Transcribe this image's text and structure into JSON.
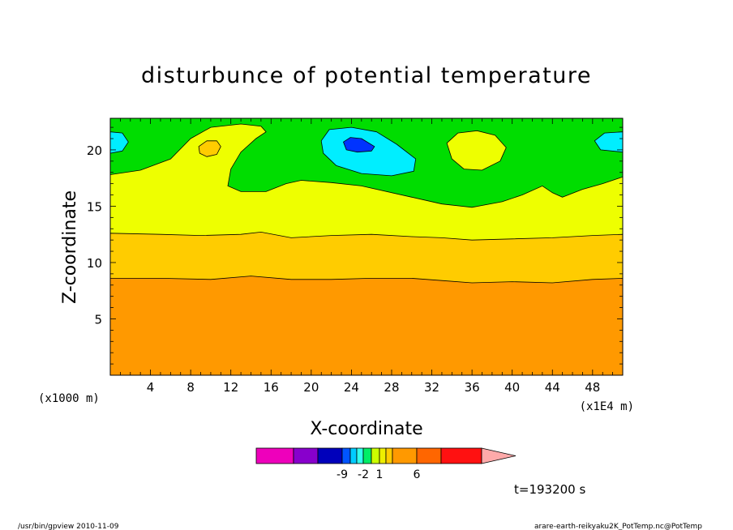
{
  "chart_data": {
    "type": "contour",
    "title": "disturbunce of potential temperature",
    "xlabel": "X-coordinate",
    "ylabel": "Z-coordinate",
    "x_unit_left": "(x1000 m)",
    "x_unit_right": "(x1E4 m)",
    "xlim": [
      0,
      51
    ],
    "ylim": [
      0,
      22.8
    ],
    "xticks": [
      4,
      8,
      12,
      16,
      20,
      24,
      28,
      32,
      36,
      40,
      44,
      48
    ],
    "yticks": [
      5,
      10,
      15,
      20
    ],
    "bands": [
      {
        "name": "orange-bottom",
        "color": "#ff9900",
        "upper": [
          [
            0,
            8.6
          ],
          [
            5,
            8.6
          ],
          [
            10,
            8.5
          ],
          [
            14,
            8.8
          ],
          [
            18,
            8.5
          ],
          [
            22,
            8.5
          ],
          [
            26,
            8.6
          ],
          [
            30,
            8.6
          ],
          [
            33,
            8.4
          ],
          [
            36,
            8.2
          ],
          [
            40,
            8.3
          ],
          [
            44,
            8.2
          ],
          [
            48,
            8.5
          ],
          [
            51,
            8.6
          ]
        ]
      },
      {
        "name": "gold",
        "color": "#ffcc00",
        "upper": [
          [
            0,
            12.6
          ],
          [
            5,
            12.5
          ],
          [
            9,
            12.4
          ],
          [
            13,
            12.5
          ],
          [
            15,
            12.7
          ],
          [
            18,
            12.2
          ],
          [
            22,
            12.4
          ],
          [
            26,
            12.5
          ],
          [
            30,
            12.3
          ],
          [
            33,
            12.2
          ],
          [
            36,
            12.0
          ],
          [
            40,
            12.1
          ],
          [
            44,
            12.2
          ],
          [
            48,
            12.4
          ],
          [
            51,
            12.5
          ]
        ]
      },
      {
        "name": "yellow",
        "color": "#eeff00",
        "upper": [
          [
            0,
            17.8
          ],
          [
            3,
            18.2
          ],
          [
            6,
            19.2
          ],
          [
            8,
            21.0
          ],
          [
            10,
            22.0
          ],
          [
            13,
            22.3
          ],
          [
            15,
            22.1
          ],
          [
            15.5,
            21.6
          ],
          [
            14.5,
            21.0
          ],
          [
            13,
            19.8
          ],
          [
            12,
            18.3
          ],
          [
            11.7,
            16.8
          ],
          [
            13,
            16.3
          ],
          [
            15.5,
            16.3
          ],
          [
            17.5,
            17.0
          ],
          [
            19,
            17.3
          ],
          [
            22,
            17.1
          ],
          [
            25,
            16.8
          ],
          [
            30,
            15.8
          ],
          [
            33,
            15.2
          ],
          [
            36,
            14.9
          ],
          [
            39,
            15.4
          ],
          [
            41,
            16.0
          ],
          [
            43,
            16.8
          ],
          [
            44,
            16.2
          ],
          [
            45,
            15.8
          ],
          [
            47,
            16.5
          ],
          [
            49,
            17.0
          ],
          [
            51,
            17.6
          ]
        ]
      }
    ],
    "regions": [
      {
        "name": "cyan-left",
        "color": "#00eeff",
        "points": [
          [
            0,
            21.6
          ],
          [
            1.2,
            21.5
          ],
          [
            1.8,
            20.7
          ],
          [
            1.2,
            19.9
          ],
          [
            0,
            19.7
          ]
        ]
      },
      {
        "name": "cyan-right",
        "color": "#00eeff",
        "points": [
          [
            51,
            21.6
          ],
          [
            49.2,
            21.5
          ],
          [
            48.2,
            20.8
          ],
          [
            48.8,
            20.0
          ],
          [
            51,
            19.8
          ]
        ]
      },
      {
        "name": "cyan-center",
        "color": "#00eeff",
        "points": [
          [
            21,
            20.8
          ],
          [
            21.8,
            21.8
          ],
          [
            24,
            22.0
          ],
          [
            26.5,
            21.6
          ],
          [
            28.5,
            20.5
          ],
          [
            30.4,
            19.2
          ],
          [
            30.2,
            18.1
          ],
          [
            28,
            17.7
          ],
          [
            25,
            17.9
          ],
          [
            22.5,
            18.6
          ],
          [
            21.2,
            19.7
          ]
        ]
      },
      {
        "name": "blue-center",
        "color": "#0033ff",
        "points": [
          [
            23.2,
            20.7
          ],
          [
            23.9,
            21.1
          ],
          [
            25,
            21.0
          ],
          [
            26.3,
            20.3
          ],
          [
            26,
            19.9
          ],
          [
            24.6,
            19.8
          ],
          [
            23.5,
            20.0
          ]
        ]
      },
      {
        "name": "yellow-island-right",
        "color": "#eeff00",
        "points": [
          [
            33.5,
            20.6
          ],
          [
            34.6,
            21.5
          ],
          [
            36.5,
            21.7
          ],
          [
            38.3,
            21.3
          ],
          [
            39.4,
            20.2
          ],
          [
            38.8,
            19.0
          ],
          [
            37,
            18.2
          ],
          [
            35.2,
            18.3
          ],
          [
            34,
            19.2
          ]
        ]
      },
      {
        "name": "gold-island-left",
        "color": "#ffcc00",
        "points": [
          [
            8.8,
            20.3
          ],
          [
            9.6,
            20.8
          ],
          [
            10.6,
            20.8
          ],
          [
            11,
            20.3
          ],
          [
            10.6,
            19.6
          ],
          [
            9.6,
            19.4
          ],
          [
            8.9,
            19.7
          ]
        ]
      }
    ],
    "colorbar": {
      "colors": [
        "#ee00bb",
        "#8800cc",
        "#0000bb",
        "#0055ff",
        "#00ccff",
        "#33ffee",
        "#00ee66",
        "#ccff00",
        "#eeee00",
        "#ffcc00",
        "#ff9900",
        "#ff6600",
        "#ff1111",
        "#ff7777",
        "#ffaaaa"
      ],
      "labels": [
        {
          "after": 2,
          "text": "-9"
        },
        {
          "after": 5,
          "text": "-2"
        },
        {
          "after": 7,
          "text": "1"
        },
        {
          "after": 10,
          "text": "6"
        }
      ]
    },
    "time_label": "t=193200 s",
    "footer_left": "/usr/bin/gpview   2010-11-09",
    "footer_right": "arare-earth-reikyaku2K_PotTemp.nc@PotTemp"
  }
}
